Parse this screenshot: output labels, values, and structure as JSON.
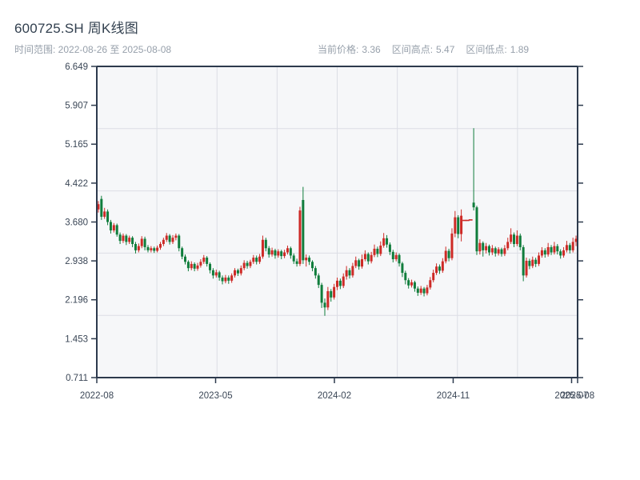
{
  "header": {
    "title": "600725.SH 周K线图",
    "date_range_label": "时间范围: 2022-08-26 至 2025-08-08",
    "stats": {
      "current": {
        "label": "当前价格:",
        "value": "3.36"
      },
      "high": {
        "label": "区间高点:",
        "value": "5.47"
      },
      "low": {
        "label": "区间低点:",
        "value": "1.89"
      }
    }
  },
  "chart_data": {
    "type": "candlestick",
    "title": "600725.SH 周K线图",
    "period": "weekly",
    "date_start": "2022-08-26",
    "date_end": "2025-08-08",
    "current_price": 3.36,
    "range_high": 5.47,
    "range_low": 1.89,
    "ylim": [
      0.711,
      6.649
    ],
    "y_ticks": [
      6.649,
      5.907,
      5.165,
      4.422,
      3.68,
      2.938,
      2.196,
      1.453,
      0.711
    ],
    "x_ticks": [
      {
        "t": 0.0,
        "label": "2022-08"
      },
      {
        "t": 0.2471,
        "label": "2023-05"
      },
      {
        "t": 0.4942,
        "label": "2024-02"
      },
      {
        "t": 0.7412,
        "label": "2024-11"
      },
      {
        "t": 0.9875,
        "label": "2025-07"
      },
      {
        "t": 1.0,
        "label": "2025-08"
      }
    ],
    "grid": {
      "rows": 5,
      "cols": 8
    },
    "colors": {
      "up": "#cd2a26",
      "down": "#107d3c",
      "spine": "#2d3a4d",
      "tick_label": "#3a4656",
      "grid": "#dcdee5",
      "plot_bg": "#f6f7f9"
    },
    "candles_format": [
      "open",
      "high",
      "low",
      "close"
    ],
    "candles": [
      [
        3.92,
        4.08,
        3.86,
        4.02
      ],
      [
        4.12,
        4.18,
        3.72,
        3.78
      ],
      [
        3.78,
        3.95,
        3.74,
        3.88
      ],
      [
        3.88,
        3.92,
        3.62,
        3.68
      ],
      [
        3.68,
        3.72,
        3.46,
        3.52
      ],
      [
        3.52,
        3.66,
        3.48,
        3.62
      ],
      [
        3.62,
        3.65,
        3.4,
        3.44
      ],
      [
        3.44,
        3.48,
        3.26,
        3.32
      ],
      [
        3.32,
        3.46,
        3.28,
        3.42
      ],
      [
        3.42,
        3.45,
        3.24,
        3.3
      ],
      [
        3.3,
        3.42,
        3.26,
        3.38
      ],
      [
        3.38,
        3.41,
        3.2,
        3.26
      ],
      [
        3.26,
        3.3,
        3.08,
        3.14
      ],
      [
        3.14,
        3.27,
        3.1,
        3.22
      ],
      [
        3.22,
        3.41,
        3.18,
        3.36
      ],
      [
        3.36,
        3.4,
        3.14,
        3.2
      ],
      [
        3.2,
        3.24,
        3.1,
        3.14
      ],
      [
        3.14,
        3.22,
        3.1,
        3.18
      ],
      [
        3.18,
        3.21,
        3.09,
        3.13
      ],
      [
        3.13,
        3.23,
        3.1,
        3.19
      ],
      [
        3.19,
        3.3,
        3.15,
        3.26
      ],
      [
        3.26,
        3.38,
        3.22,
        3.34
      ],
      [
        3.34,
        3.47,
        3.3,
        3.42
      ],
      [
        3.42,
        3.45,
        3.25,
        3.3
      ],
      [
        3.3,
        3.43,
        3.26,
        3.38
      ],
      [
        3.38,
        3.46,
        3.33,
        3.42
      ],
      [
        3.42,
        3.45,
        3.12,
        3.18
      ],
      [
        3.18,
        3.21,
        2.97,
        3.02
      ],
      [
        3.02,
        3.06,
        2.87,
        2.92
      ],
      [
        2.92,
        2.95,
        2.74,
        2.8
      ],
      [
        2.8,
        2.93,
        2.76,
        2.88
      ],
      [
        2.88,
        2.91,
        2.74,
        2.79
      ],
      [
        2.79,
        2.9,
        2.75,
        2.85
      ],
      [
        2.85,
        2.97,
        2.81,
        2.92
      ],
      [
        2.92,
        3.05,
        2.88,
        3.0
      ],
      [
        3.0,
        3.03,
        2.83,
        2.88
      ],
      [
        2.88,
        2.91,
        2.7,
        2.76
      ],
      [
        2.76,
        2.8,
        2.6,
        2.66
      ],
      [
        2.66,
        2.77,
        2.62,
        2.72
      ],
      [
        2.72,
        2.75,
        2.56,
        2.62
      ],
      [
        2.62,
        2.66,
        2.49,
        2.55
      ],
      [
        2.55,
        2.67,
        2.51,
        2.62
      ],
      [
        2.62,
        2.66,
        2.5,
        2.56
      ],
      [
        2.56,
        2.7,
        2.52,
        2.66
      ],
      [
        2.66,
        2.8,
        2.62,
        2.76
      ],
      [
        2.76,
        2.79,
        2.65,
        2.7
      ],
      [
        2.7,
        2.85,
        2.66,
        2.8
      ],
      [
        2.8,
        2.95,
        2.76,
        2.9
      ],
      [
        2.9,
        2.94,
        2.79,
        2.84
      ],
      [
        2.84,
        2.96,
        2.8,
        2.92
      ],
      [
        2.92,
        3.05,
        2.88,
        3.0
      ],
      [
        3.0,
        3.04,
        2.87,
        2.92
      ],
      [
        2.92,
        3.07,
        2.88,
        3.02
      ],
      [
        3.02,
        3.42,
        2.98,
        3.34
      ],
      [
        3.34,
        3.38,
        3.12,
        3.18
      ],
      [
        3.18,
        3.22,
        3.0,
        3.06
      ],
      [
        3.06,
        3.19,
        3.02,
        3.14
      ],
      [
        3.14,
        3.17,
        2.98,
        3.04
      ],
      [
        3.04,
        3.16,
        3.0,
        3.12
      ],
      [
        3.12,
        3.15,
        2.97,
        3.03
      ],
      [
        3.03,
        3.15,
        2.99,
        3.1
      ],
      [
        3.1,
        3.23,
        3.06,
        3.18
      ],
      [
        3.18,
        3.21,
        2.98,
        3.04
      ],
      [
        3.04,
        3.08,
        2.88,
        2.93
      ],
      [
        2.93,
        2.98,
        2.83,
        2.88
      ],
      [
        2.88,
        3.97,
        2.84,
        3.9
      ],
      [
        4.1,
        4.35,
        2.88,
        2.95
      ],
      [
        2.95,
        3.06,
        2.83,
        3.0
      ],
      [
        3.0,
        3.04,
        2.86,
        2.92
      ],
      [
        2.92,
        2.95,
        2.74,
        2.8
      ],
      [
        2.8,
        2.84,
        2.6,
        2.66
      ],
      [
        2.66,
        2.7,
        2.42,
        2.48
      ],
      [
        2.48,
        2.52,
        2.04,
        2.14
      ],
      [
        2.14,
        2.22,
        1.89,
        2.05
      ],
      [
        2.05,
        2.44,
        2.0,
        2.36
      ],
      [
        2.36,
        2.4,
        2.16,
        2.24
      ],
      [
        2.24,
        2.5,
        2.2,
        2.44
      ],
      [
        2.44,
        2.62,
        2.38,
        2.56
      ],
      [
        2.56,
        2.6,
        2.4,
        2.46
      ],
      [
        2.46,
        2.7,
        2.42,
        2.64
      ],
      [
        2.64,
        2.84,
        2.58,
        2.76
      ],
      [
        2.76,
        2.8,
        2.6,
        2.66
      ],
      [
        2.66,
        2.9,
        2.62,
        2.84
      ],
      [
        2.84,
        3.02,
        2.8,
        2.95
      ],
      [
        2.95,
        2.98,
        2.77,
        2.83
      ],
      [
        2.83,
        3.06,
        2.79,
        2.97
      ],
      [
        2.97,
        3.14,
        2.93,
        3.07
      ],
      [
        3.07,
        3.1,
        2.87,
        2.93
      ],
      [
        2.93,
        3.11,
        2.89,
        3.05
      ],
      [
        3.05,
        3.25,
        3.01,
        3.17
      ],
      [
        3.17,
        3.21,
        3.01,
        3.07
      ],
      [
        3.07,
        3.31,
        3.03,
        3.23
      ],
      [
        3.23,
        3.47,
        3.19,
        3.37
      ],
      [
        3.37,
        3.43,
        3.19,
        3.25
      ],
      [
        3.25,
        3.29,
        3.05,
        3.11
      ],
      [
        3.11,
        3.15,
        2.91,
        2.97
      ],
      [
        2.97,
        3.1,
        2.93,
        3.05
      ],
      [
        3.05,
        3.08,
        2.83,
        2.89
      ],
      [
        2.89,
        2.92,
        2.63,
        2.71
      ],
      [
        2.71,
        2.75,
        2.49,
        2.57
      ],
      [
        2.57,
        2.61,
        2.41,
        2.47
      ],
      [
        2.47,
        2.58,
        2.43,
        2.53
      ],
      [
        2.53,
        2.56,
        2.35,
        2.41
      ],
      [
        2.41,
        2.45,
        2.27,
        2.33
      ],
      [
        2.33,
        2.46,
        2.29,
        2.41
      ],
      [
        2.41,
        2.44,
        2.26,
        2.32
      ],
      [
        2.32,
        2.48,
        2.28,
        2.43
      ],
      [
        2.43,
        2.63,
        2.39,
        2.57
      ],
      [
        2.57,
        2.77,
        2.53,
        2.71
      ],
      [
        2.71,
        2.89,
        2.67,
        2.83
      ],
      [
        2.83,
        2.87,
        2.69,
        2.75
      ],
      [
        2.75,
        2.99,
        2.71,
        2.93
      ],
      [
        2.93,
        3.21,
        2.89,
        3.13
      ],
      [
        3.13,
        3.17,
        2.93,
        2.99
      ],
      [
        2.99,
        3.56,
        2.95,
        3.46
      ],
      [
        3.46,
        3.89,
        3.39,
        3.77
      ],
      [
        3.77,
        3.81,
        3.37,
        3.45
      ],
      [
        3.45,
        3.92,
        3.31,
        3.8
      ],
      [
        3.71,
        3.75,
        3.67,
        3.71
      ],
      [
        3.71,
        3.74,
        3.68,
        3.71
      ],
      [
        3.72,
        3.76,
        3.68,
        3.72
      ],
      [
        4.05,
        5.47,
        3.9,
        3.96
      ],
      [
        3.96,
        3.99,
        3.05,
        3.12
      ],
      [
        3.12,
        3.35,
        3.06,
        3.28
      ],
      [
        3.28,
        3.31,
        3.02,
        3.14
      ],
      [
        3.14,
        3.28,
        3.08,
        3.22
      ],
      [
        3.22,
        3.25,
        3.04,
        3.1
      ],
      [
        3.1,
        3.24,
        3.05,
        3.18
      ],
      [
        3.18,
        3.21,
        3.02,
        3.08
      ],
      [
        3.08,
        3.2,
        3.04,
        3.16
      ],
      [
        3.16,
        3.19,
        3.02,
        3.07
      ],
      [
        3.07,
        3.24,
        3.03,
        3.18
      ],
      [
        3.18,
        3.38,
        3.14,
        3.3
      ],
      [
        3.3,
        3.56,
        3.26,
        3.44
      ],
      [
        3.44,
        3.48,
        3.2,
        3.26
      ],
      [
        3.26,
        3.52,
        3.22,
        3.42
      ],
      [
        3.42,
        3.46,
        3.14,
        3.2
      ],
      [
        3.2,
        3.24,
        2.55,
        2.66
      ],
      [
        2.66,
        3.0,
        2.62,
        2.94
      ],
      [
        2.94,
        2.98,
        2.78,
        2.84
      ],
      [
        2.84,
        3.02,
        2.8,
        2.96
      ],
      [
        2.96,
        3.0,
        2.82,
        2.88
      ],
      [
        2.88,
        3.1,
        2.84,
        3.04
      ],
      [
        3.04,
        3.2,
        3.0,
        3.14
      ],
      [
        3.14,
        3.18,
        3.0,
        3.06
      ],
      [
        3.06,
        3.28,
        3.02,
        3.2
      ],
      [
        3.2,
        3.24,
        3.05,
        3.1
      ],
      [
        3.1,
        3.3,
        3.06,
        3.22
      ],
      [
        3.22,
        3.26,
        3.06,
        3.12
      ],
      [
        3.12,
        3.16,
        2.98,
        3.04
      ],
      [
        3.04,
        3.2,
        3.0,
        3.14
      ],
      [
        3.14,
        3.32,
        3.1,
        3.24
      ],
      [
        3.24,
        3.28,
        3.08,
        3.14
      ],
      [
        3.14,
        3.38,
        3.1,
        3.3
      ],
      [
        3.3,
        3.42,
        3.22,
        3.36
      ]
    ]
  }
}
